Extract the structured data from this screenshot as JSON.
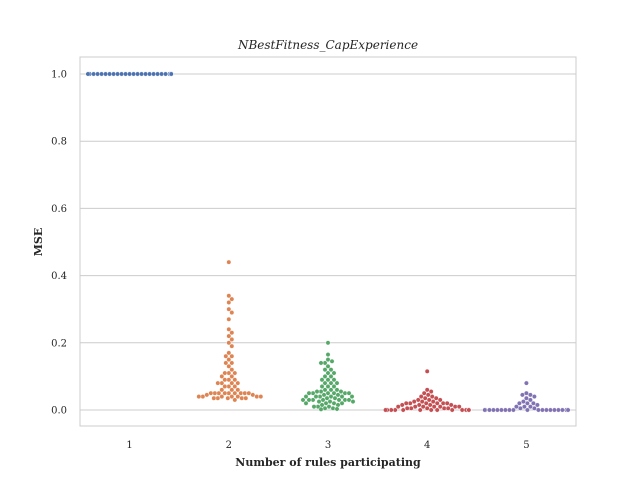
{
  "chart_data": {
    "type": "scatter",
    "style": "swarm",
    "title": "NBestFitness_CapExperience",
    "xlabel": "Number of rules participating",
    "ylabel": "MSE",
    "categories": [
      "1",
      "2",
      "3",
      "4",
      "5"
    ],
    "yticks": [
      "0.0",
      "0.2",
      "0.4",
      "0.6",
      "0.8",
      "1.0"
    ],
    "ylim": [
      -0.05,
      1.05
    ],
    "grid": true,
    "series": [
      {
        "category": "1",
        "color": "#4c72b0",
        "values": [
          1.0,
          1.0,
          1.0,
          1.0,
          1.0,
          1.0,
          1.0,
          1.0,
          1.0,
          1.0,
          1.0,
          1.0,
          1.0,
          1.0,
          1.0,
          1.0,
          1.0,
          1.0,
          1.0,
          1.0,
          1.0,
          1.0,
          1.0,
          1.0,
          1.0,
          1.0,
          1.0,
          1.0,
          1.0,
          1.0,
          1.0,
          1.0,
          1.0,
          1.0,
          1.0,
          1.0,
          1.0,
          1.0,
          1.0,
          1.0
        ]
      },
      {
        "category": "2",
        "color": "#dd8452",
        "values": [
          0.44,
          0.34,
          0.33,
          0.32,
          0.3,
          0.29,
          0.27,
          0.24,
          0.23,
          0.22,
          0.21,
          0.2,
          0.19,
          0.17,
          0.16,
          0.16,
          0.15,
          0.14,
          0.14,
          0.13,
          0.12,
          0.11,
          0.11,
          0.11,
          0.1,
          0.1,
          0.09,
          0.09,
          0.09,
          0.08,
          0.08,
          0.08,
          0.08,
          0.07,
          0.07,
          0.07,
          0.06,
          0.06,
          0.06,
          0.05,
          0.05,
          0.05,
          0.05,
          0.05,
          0.05,
          0.05,
          0.05,
          0.05,
          0.045,
          0.045,
          0.04,
          0.04,
          0.04,
          0.04,
          0.04,
          0.04,
          0.04,
          0.035,
          0.035,
          0.035,
          0.035,
          0.035,
          0.03
        ]
      },
      {
        "category": "3",
        "color": "#55a868",
        "values": [
          0.2,
          0.165,
          0.15,
          0.145,
          0.14,
          0.14,
          0.13,
          0.12,
          0.12,
          0.11,
          0.11,
          0.1,
          0.1,
          0.09,
          0.09,
          0.09,
          0.08,
          0.08,
          0.08,
          0.07,
          0.07,
          0.07,
          0.06,
          0.06,
          0.06,
          0.055,
          0.055,
          0.055,
          0.05,
          0.05,
          0.05,
          0.05,
          0.05,
          0.05,
          0.045,
          0.045,
          0.04,
          0.04,
          0.04,
          0.04,
          0.04,
          0.04,
          0.035,
          0.035,
          0.03,
          0.03,
          0.03,
          0.03,
          0.03,
          0.03,
          0.03,
          0.025,
          0.025,
          0.025,
          0.02,
          0.02,
          0.02,
          0.02,
          0.015,
          0.015,
          0.01,
          0.01,
          0.01,
          0.005,
          0.005,
          0.003,
          0.002
        ]
      },
      {
        "category": "4",
        "color": "#c44e52",
        "values": [
          0.115,
          0.06,
          0.055,
          0.05,
          0.045,
          0.04,
          0.04,
          0.035,
          0.035,
          0.03,
          0.03,
          0.03,
          0.025,
          0.025,
          0.025,
          0.02,
          0.02,
          0.02,
          0.02,
          0.02,
          0.02,
          0.015,
          0.015,
          0.015,
          0.015,
          0.01,
          0.01,
          0.01,
          0.01,
          0.01,
          0.01,
          0.01,
          0.005,
          0.005,
          0.005,
          0.005,
          0.005,
          0.0,
          0.0,
          0.0,
          0.0,
          0.0,
          0.0,
          0.0,
          0.0,
          0.0,
          0.0,
          0.0,
          0.0,
          0.0,
          0.0,
          0.0,
          0.0,
          0.0,
          0.0,
          0.0,
          0.0,
          0.0,
          0.0,
          0.0,
          0.0,
          0.0,
          0.0,
          0.0,
          0.0,
          0.0,
          0.0
        ]
      },
      {
        "category": "5",
        "color": "#8172b3",
        "values": [
          0.08,
          0.05,
          0.045,
          0.045,
          0.04,
          0.035,
          0.03,
          0.025,
          0.02,
          0.02,
          0.02,
          0.015,
          0.01,
          0.01,
          0.01,
          0.005,
          0.005,
          0.0,
          0.0,
          0.0,
          0.0,
          0.0,
          0.0,
          0.0,
          0.0,
          0.0,
          0.0,
          0.0,
          0.0,
          0.0,
          0.0,
          0.0,
          0.0,
          0.0,
          0.0,
          0.0,
          0.0,
          0.0,
          0.0,
          0.0,
          0.0
        ]
      }
    ]
  }
}
